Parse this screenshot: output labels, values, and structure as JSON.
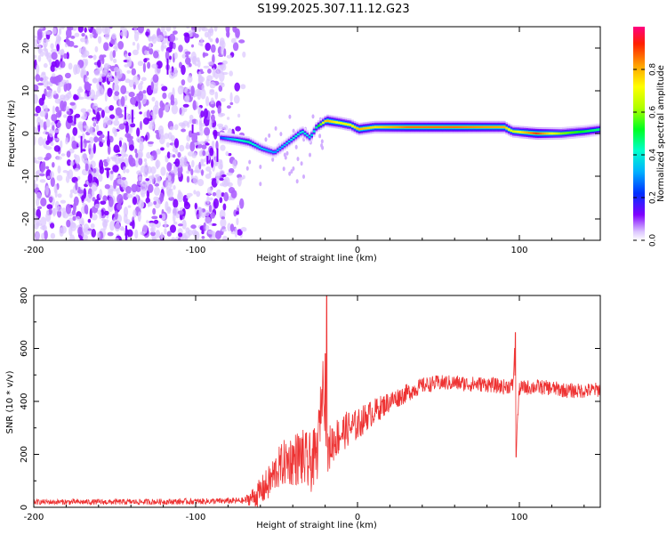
{
  "title": "S199.2025.307.11.12.G23",
  "chart_data": [
    {
      "type": "heatmap",
      "xlabel": "Height of straight line (km)",
      "ylabel": "Frequency (Hz)",
      "xlim": [
        -200,
        150
      ],
      "ylim": [
        -25,
        25
      ],
      "x_ticks": [
        "-200",
        "-100",
        "0",
        "100"
      ],
      "y_ticks": [
        "-20",
        "-10",
        "0",
        "10",
        "20"
      ],
      "noise_region_x": [
        -200,
        -70
      ],
      "ridge": [
        {
          "x": -85,
          "f": -1.0,
          "a": 0.25
        },
        {
          "x": -75,
          "f": -1.5,
          "a": 0.4
        },
        {
          "x": -68,
          "f": -2.0,
          "a": 0.45
        },
        {
          "x": -60,
          "f": -3.5,
          "a": 0.35
        },
        {
          "x": -52,
          "f": -4.5,
          "a": 0.3
        },
        {
          "x": -45,
          "f": -2.5,
          "a": 0.35
        },
        {
          "x": -40,
          "f": -1.0,
          "a": 0.4
        },
        {
          "x": -35,
          "f": 0.5,
          "a": 0.4
        },
        {
          "x": -30,
          "f": -1.0,
          "a": 0.35
        },
        {
          "x": -26,
          "f": 1.5,
          "a": 0.45
        },
        {
          "x": -20,
          "f": 3.0,
          "a": 0.8
        },
        {
          "x": -12,
          "f": 2.5,
          "a": 0.7
        },
        {
          "x": -5,
          "f": 2.0,
          "a": 0.7
        },
        {
          "x": 0,
          "f": 1.0,
          "a": 0.8
        },
        {
          "x": 10,
          "f": 1.5,
          "a": 0.75
        },
        {
          "x": 30,
          "f": 1.5,
          "a": 0.85
        },
        {
          "x": 60,
          "f": 1.5,
          "a": 0.85
        },
        {
          "x": 90,
          "f": 1.5,
          "a": 0.8
        },
        {
          "x": 95,
          "f": 0.5,
          "a": 0.65
        },
        {
          "x": 110,
          "f": 0.0,
          "a": 0.9
        },
        {
          "x": 125,
          "f": 0.0,
          "a": 0.6
        },
        {
          "x": 140,
          "f": 0.5,
          "a": 0.5
        },
        {
          "x": 150,
          "f": 1.0,
          "a": 0.45
        }
      ],
      "colorbar": {
        "label": "Normalized spectral amplitude",
        "ticks": [
          "0.0",
          "0.2",
          "0.4",
          "0.6",
          "0.8"
        ],
        "range": [
          0,
          1
        ]
      }
    },
    {
      "type": "line",
      "xlabel": "Height of straight line (km)",
      "ylabel": "SNR (10 * v/v)",
      "xlim": [
        -200,
        150
      ],
      "ylim": [
        0,
        800
      ],
      "x_ticks": [
        "-200",
        "-100",
        "0",
        "100"
      ],
      "y_ticks": [
        "0",
        "200",
        "400",
        "600",
        "800"
      ],
      "color": "#ee3333",
      "series": [
        {
          "name": "SNR",
          "x": [
            -200,
            -150,
            -100,
            -70,
            -62,
            -55,
            -50,
            -45,
            -40,
            -35,
            -30,
            -25,
            -21,
            -19,
            -17,
            -15,
            -10,
            -5,
            0,
            5,
            10,
            20,
            30,
            40,
            50,
            60,
            70,
            80,
            90,
            96,
            97,
            98,
            100,
            110,
            120,
            130,
            140,
            150
          ],
          "y": [
            20,
            20,
            22,
            25,
            45,
            90,
            140,
            170,
            180,
            190,
            160,
            200,
            500,
            180,
            230,
            250,
            280,
            300,
            310,
            340,
            360,
            400,
            430,
            460,
            470,
            470,
            465,
            465,
            455,
            460,
            580,
            230,
            450,
            455,
            450,
            440,
            440,
            445
          ],
          "spikes": [
            {
              "x": -19,
              "y": 820
            },
            {
              "x": -20,
              "y": 580
            },
            {
              "x": 97.5,
              "y": 660
            },
            {
              "x": 98,
              "y": 190
            }
          ],
          "noise": [
            {
              "x": -200,
              "amp": 10
            },
            {
              "x": -70,
              "amp": 12
            },
            {
              "x": -62,
              "amp": 50
            },
            {
              "x": -40,
              "amp": 100
            },
            {
              "x": -30,
              "amp": 120
            },
            {
              "x": -22,
              "amp": 100
            },
            {
              "x": -15,
              "amp": 80
            },
            {
              "x": 0,
              "amp": 60
            },
            {
              "x": 20,
              "amp": 40
            },
            {
              "x": 40,
              "amp": 30
            },
            {
              "x": 150,
              "amp": 28
            }
          ]
        }
      ]
    }
  ]
}
